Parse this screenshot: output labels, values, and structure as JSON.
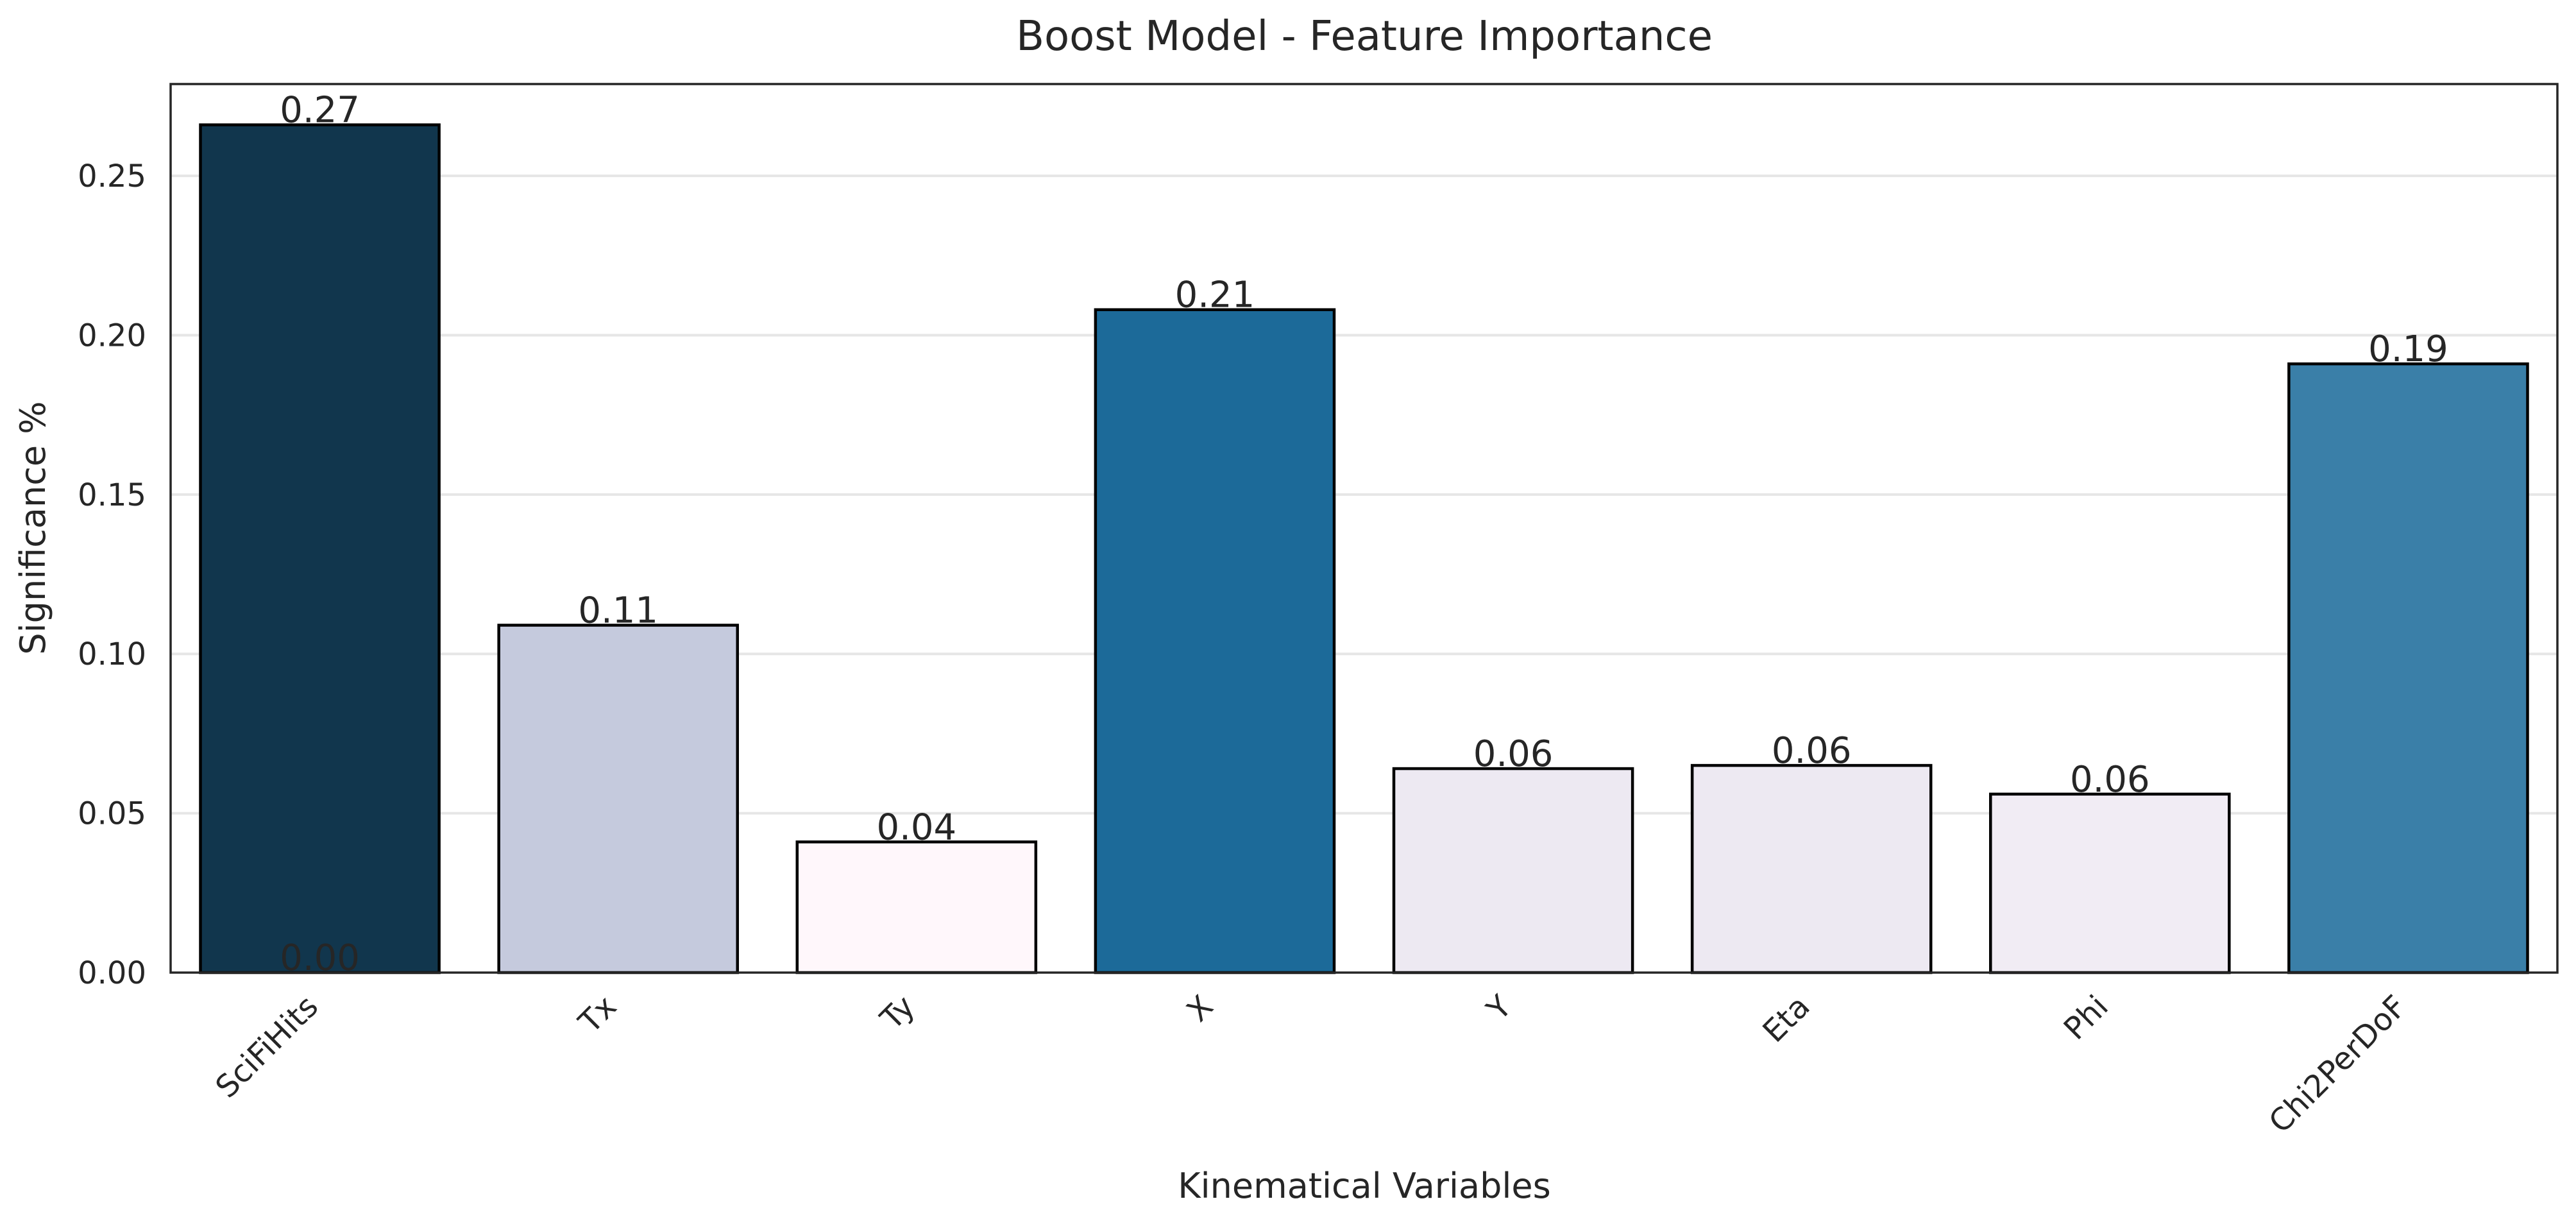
{
  "chart_data": {
    "type": "bar",
    "title": "Boost Model - Feature Importance",
    "xlabel": "Kinematical Variables",
    "ylabel": "Significance %",
    "categories": [
      "SciFiHits",
      "Tx",
      "Ty",
      "X",
      "Y",
      "Eta",
      "Phi",
      "Chi2PerDoF"
    ],
    "values": [
      0.266,
      0.109,
      0.041,
      0.208,
      0.064,
      0.065,
      0.056,
      0.191
    ],
    "data_labels": [
      "0.27",
      "0.11",
      "0.04",
      "0.21",
      "0.06",
      "0.06",
      "0.06",
      "0.19"
    ],
    "extra_labels": [
      {
        "category": "SciFiHits",
        "value": 0.0,
        "text": "0.00"
      }
    ],
    "colors": [
      "#11364d",
      "#c5cadd",
      "#fff7fb",
      "#1c6a99",
      "#ede9f2",
      "#ede9f2",
      "#f1ecf4",
      "#3a7fa8"
    ],
    "ylim": [
      0,
      0.2788
    ],
    "yticks": [
      0.0,
      0.05,
      0.1,
      0.15,
      0.2,
      0.25
    ],
    "ytick_labels": [
      "0.00",
      "0.05",
      "0.10",
      "0.15",
      "0.20",
      "0.25"
    ],
    "grid": "y",
    "xtick_rotation": 45
  }
}
